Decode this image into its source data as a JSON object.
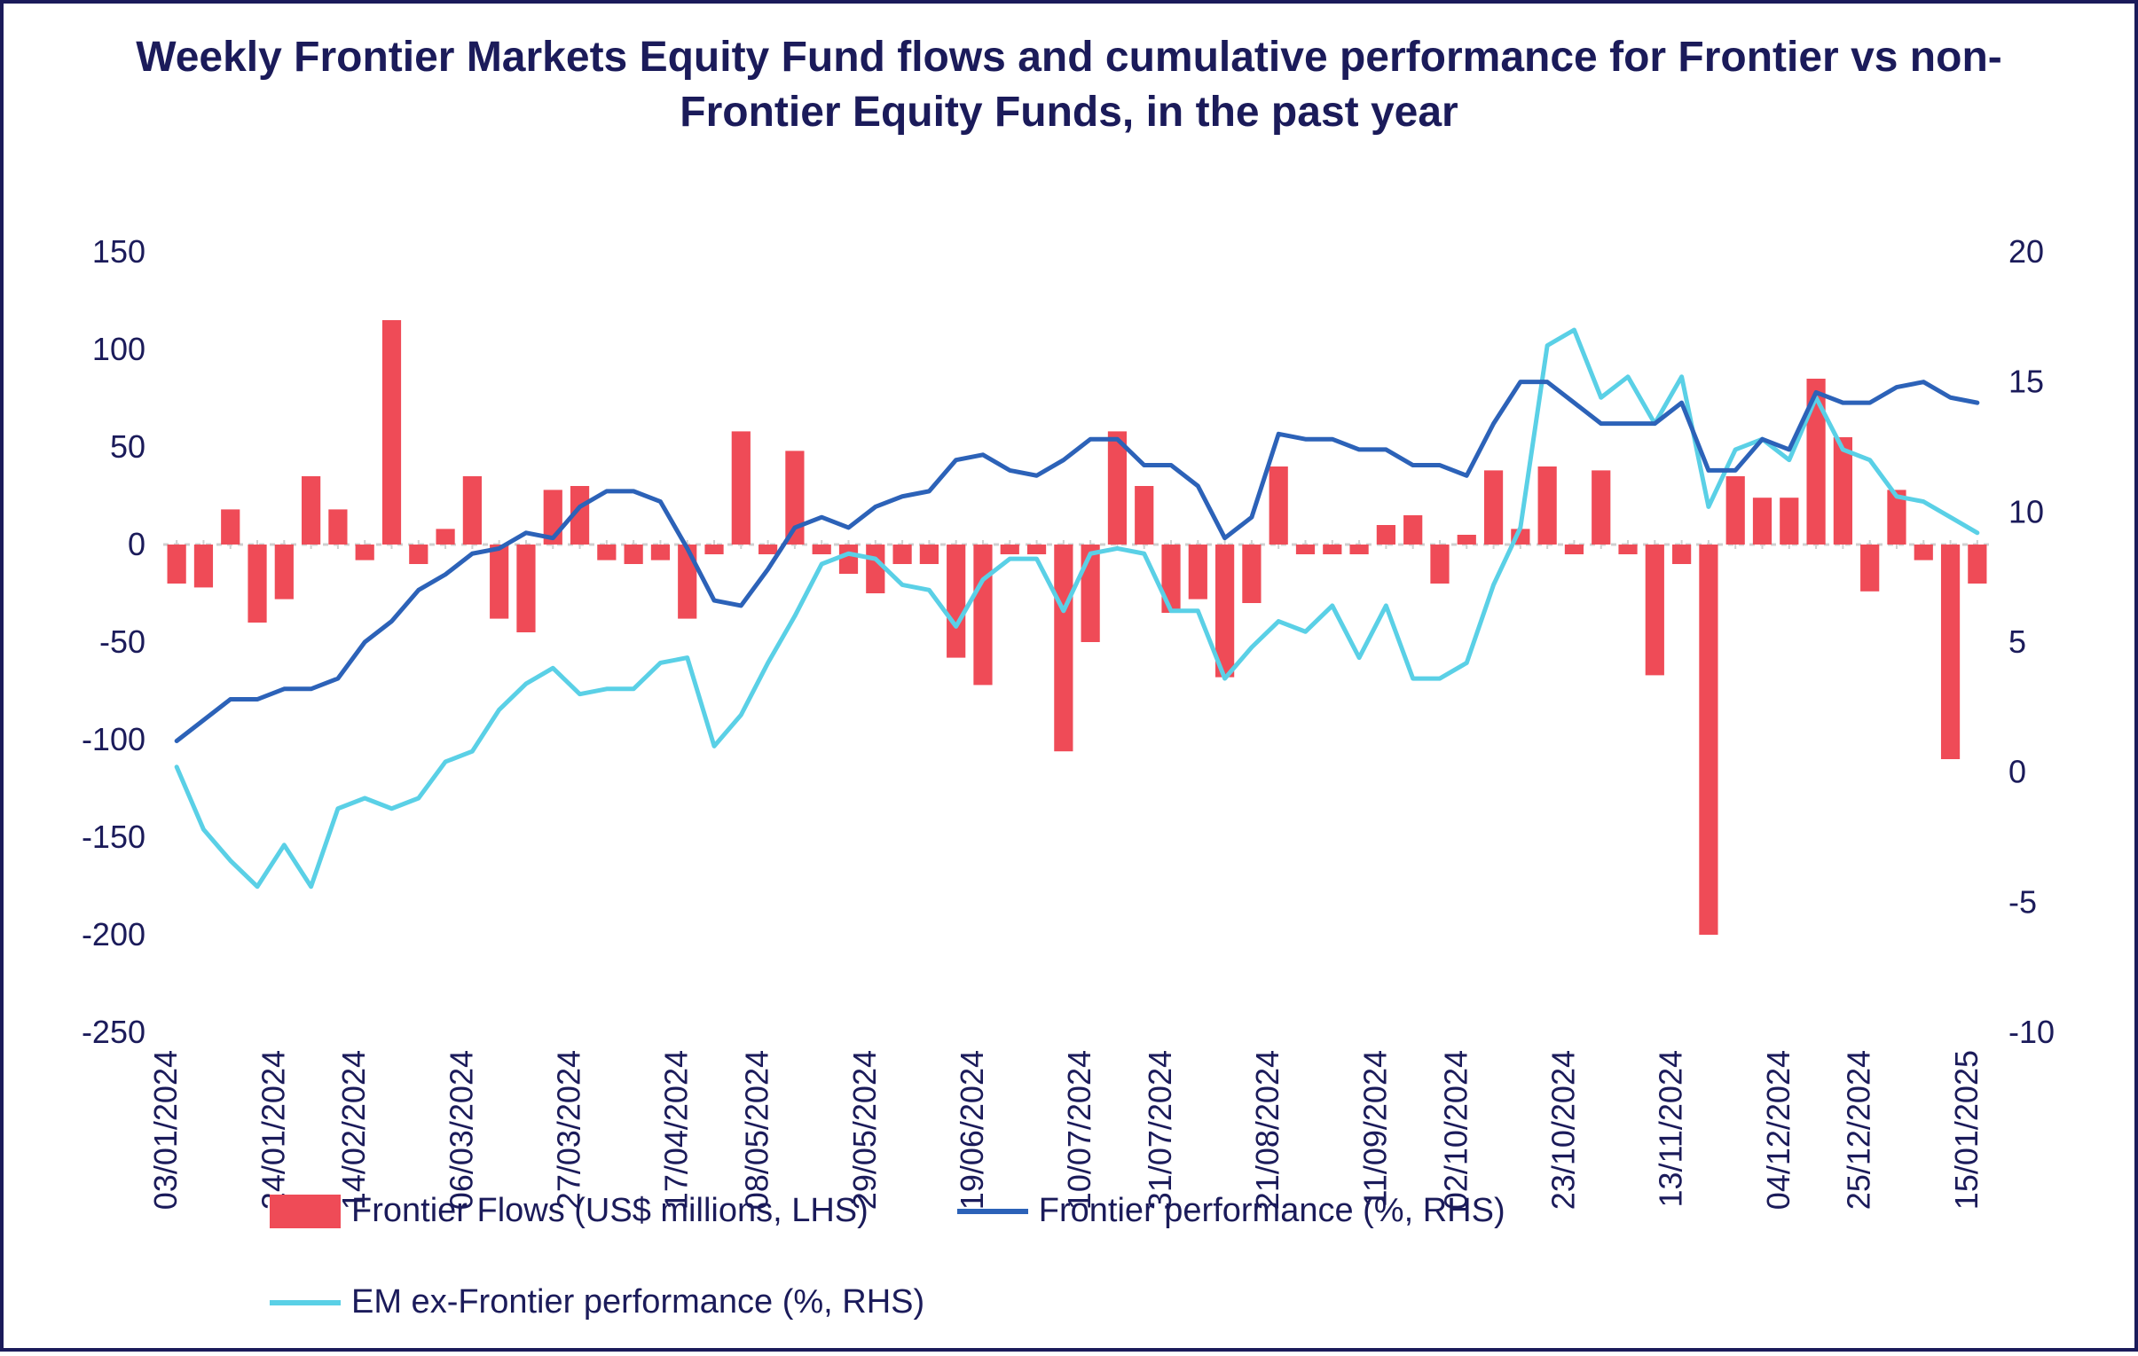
{
  "chart": {
    "type": "combo-bar-2lines-dual-axis",
    "title": "Weekly Frontier Markets Equity Fund flows and cumulative performance for Frontier vs non-Frontier Equity Funds, in the past year",
    "title_color": "#1b1b5a",
    "title_fontsize": 48,
    "title_fontweight": 700,
    "background_color": "#ffffff",
    "border_color": "#1b1b5a",
    "axis_text_color": "#1b1b5a",
    "axis_fontsize": 36,
    "grid_color": "#cfcfcf",
    "zero_line_color": "#cfcfcf",
    "zero_line_dash": "6,6",
    "zero_line_width": 3,
    "left_axis": {
      "label": "",
      "min": -250,
      "max": 150,
      "ticks": [
        -250,
        -200,
        -150,
        -100,
        -50,
        0,
        50,
        100,
        150
      ]
    },
    "right_axis": {
      "label": "",
      "min": -10,
      "max": 20,
      "ticks": [
        -10,
        -5,
        0,
        5,
        10,
        15,
        20
      ]
    },
    "x": {
      "labels_visible": [
        "03/01/2024",
        "24/01/2024",
        "14/02/2024",
        "06/03/2024",
        "27/03/2024",
        "17/04/2024",
        "08/05/2024",
        "29/05/2024",
        "19/06/2024",
        "10/07/2024",
        "31/07/2024",
        "21/08/2024",
        "11/09/2024",
        "02/10/2024",
        "23/10/2024",
        "13/11/2024",
        "04/12/2024",
        "25/12/2024",
        "15/01/2025"
      ],
      "label_rotation_deg": -90
    },
    "series": {
      "bars": {
        "legend": "Frontier Flows (US$ millions, LHS)",
        "axis": "left",
        "color": "#ef4b57",
        "bar_width_ratio": 0.7,
        "values": [
          -20,
          -22,
          18,
          -40,
          -28,
          35,
          18,
          -8,
          115,
          -10,
          8,
          35,
          -38,
          -45,
          28,
          30,
          -8,
          -10,
          -8,
          -38,
          -5,
          58,
          -5,
          48,
          -5,
          -15,
          -25,
          -10,
          -10,
          -58,
          -72,
          -5,
          -5,
          -106,
          -50,
          58,
          30,
          -35,
          -28,
          -68,
          -30,
          40,
          -5,
          -5,
          -5,
          10,
          15,
          -20,
          5,
          38,
          8,
          40,
          -5,
          38,
          -5,
          -67,
          -10,
          -200,
          35,
          24,
          24,
          85,
          55,
          -24,
          28,
          -8,
          -110,
          -20
        ]
      },
      "line1": {
        "legend": "Frontier performance (%, RHS)",
        "axis": "right",
        "color": "#2c62b8",
        "line_width": 5,
        "values": [
          1.2,
          2.0,
          2.8,
          2.8,
          3.2,
          3.2,
          3.6,
          5.0,
          5.8,
          7.0,
          7.6,
          8.4,
          8.6,
          9.2,
          9.0,
          10.2,
          10.8,
          10.8,
          10.4,
          8.6,
          6.6,
          6.4,
          7.8,
          9.4,
          9.8,
          9.4,
          10.2,
          10.6,
          10.8,
          12.0,
          12.2,
          11.6,
          11.4,
          12.0,
          12.8,
          12.8,
          11.8,
          11.8,
          11.0,
          9.0,
          9.8,
          13.0,
          12.8,
          12.8,
          12.4,
          12.4,
          11.8,
          11.8,
          11.4,
          13.4,
          15.0,
          15.0,
          14.2,
          13.4,
          13.4,
          13.4,
          14.2,
          11.6,
          11.6,
          12.8,
          12.4,
          14.6,
          14.2,
          14.2,
          14.8,
          15.0,
          14.4,
          14.2
        ]
      },
      "line2": {
        "legend": "EM ex-Frontier performance (%, RHS)",
        "axis": "right",
        "color": "#5ad0e6",
        "line_width": 5,
        "values": [
          0.2,
          -2.2,
          -3.4,
          -4.4,
          -2.8,
          -4.4,
          -1.4,
          -1.0,
          -1.4,
          -1.0,
          0.4,
          0.8,
          2.4,
          3.4,
          4.0,
          3.0,
          3.2,
          3.2,
          4.2,
          4.4,
          1.0,
          2.2,
          4.2,
          6.0,
          8.0,
          8.4,
          8.2,
          7.2,
          7.0,
          5.6,
          7.4,
          8.2,
          8.2,
          6.2,
          8.4,
          8.6,
          8.4,
          6.2,
          6.2,
          3.6,
          4.8,
          5.8,
          5.4,
          6.4,
          4.4,
          6.4,
          3.6,
          3.6,
          4.2,
          7.2,
          9.4,
          16.4,
          17.0,
          14.4,
          15.2,
          13.4,
          15.2,
          10.2,
          12.4,
          12.8,
          12.0,
          14.4,
          12.4,
          12.0,
          10.6,
          10.4,
          9.8,
          9.2
        ]
      }
    },
    "legend_style": {
      "text_color": "#1b1b5a",
      "fontsize": 38,
      "bar_swatch_size": [
        80,
        38
      ],
      "line_swatch_size": [
        80,
        6
      ]
    }
  }
}
